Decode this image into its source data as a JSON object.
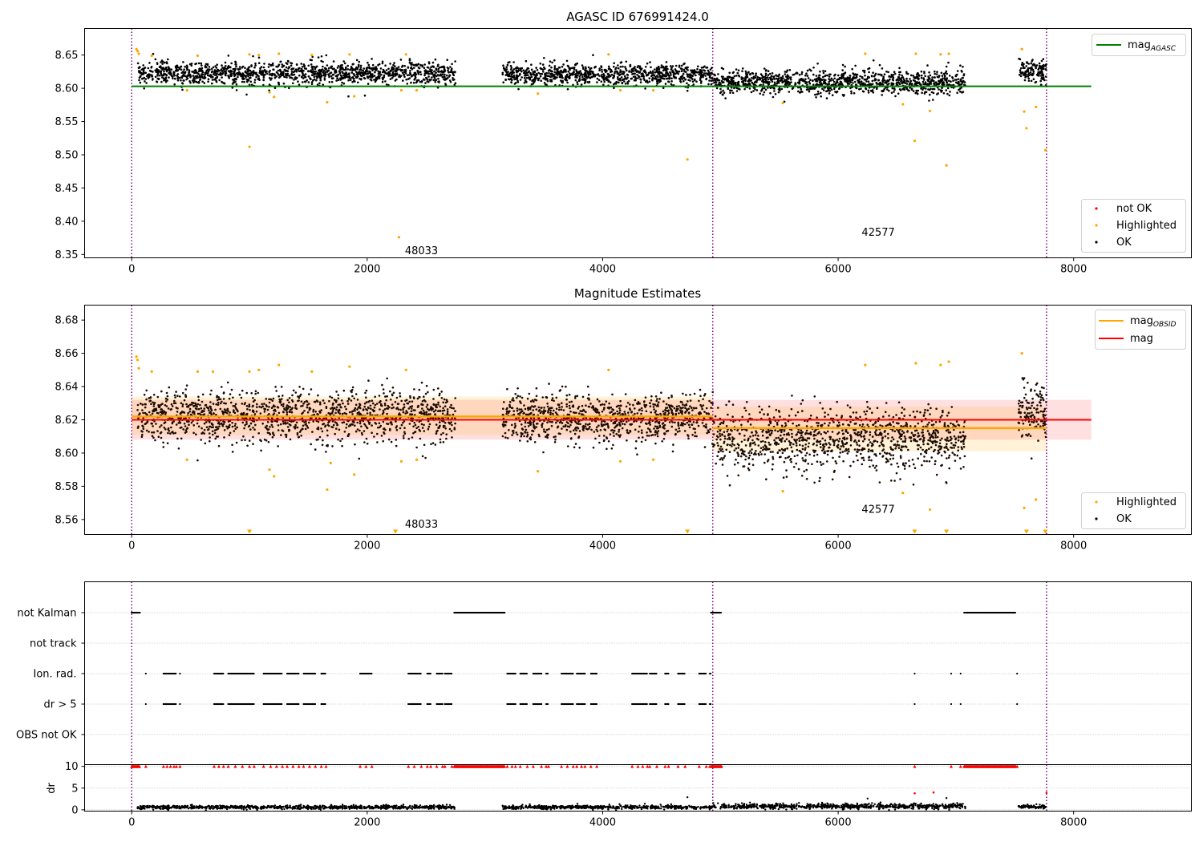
{
  "chart_data": [
    {
      "panel": "top",
      "type": "scatter",
      "title": "AGASC ID 676991424.0",
      "xlim": [
        -400,
        9000
      ],
      "ylim": [
        8.345,
        8.69
      ],
      "xticks": [
        0,
        2000,
        4000,
        6000,
        8000
      ],
      "yticks": [
        8.35,
        8.4,
        8.45,
        8.5,
        8.55,
        8.6,
        8.65
      ],
      "xtick_labels": [
        "0",
        "2000",
        "4000",
        "6000",
        "8000"
      ],
      "ytick_labels": [
        "8.35",
        "8.40",
        "8.45",
        "8.50",
        "8.55",
        "8.60",
        "8.65"
      ],
      "obs_boundaries": [
        0,
        4935,
        7770
      ],
      "obs_labels": [
        {
          "text": "48033",
          "x": 2320,
          "y": 8.355
        },
        {
          "text": "42577",
          "x": 6200,
          "y": 8.383
        }
      ],
      "mag_agasc": {
        "value": 8.603,
        "x": [
          0,
          8150
        ],
        "color": "#008000"
      },
      "ok_segments": [
        {
          "x": [
            50,
            2750
          ],
          "center": 8.623,
          "spread": 0.012
        },
        {
          "x": [
            3150,
            4935
          ],
          "center": 8.621,
          "spread": 0.011
        },
        {
          "x": [
            4935,
            7080
          ],
          "center": 8.609,
          "spread": 0.013
        },
        {
          "x": [
            7530,
            7770
          ],
          "center": 8.626,
          "spread": 0.012
        }
      ],
      "highlighted_points": [
        [
          40,
          8.659
        ],
        [
          50,
          8.656
        ],
        [
          60,
          8.652
        ],
        [
          170,
          8.649
        ],
        [
          470,
          8.597
        ],
        [
          560,
          8.649
        ],
        [
          1000,
          8.512
        ],
        [
          1000,
          8.651
        ],
        [
          1080,
          8.65
        ],
        [
          1170,
          8.594
        ],
        [
          1210,
          8.587
        ],
        [
          1250,
          8.652
        ],
        [
          1530,
          8.65
        ],
        [
          1660,
          8.579
        ],
        [
          1850,
          8.651
        ],
        [
          1890,
          8.588
        ],
        [
          2270,
          8.376
        ],
        [
          2290,
          8.597
        ],
        [
          2330,
          8.651
        ],
        [
          2420,
          8.597
        ],
        [
          3450,
          8.592
        ],
        [
          4050,
          8.651
        ],
        [
          4150,
          8.597
        ],
        [
          4720,
          8.493
        ],
        [
          4430,
          8.597
        ],
        [
          5530,
          8.578
        ],
        [
          6230,
          8.652
        ],
        [
          6550,
          8.576
        ],
        [
          6650,
          8.521
        ],
        [
          6660,
          8.652
        ],
        [
          6780,
          8.566
        ],
        [
          6870,
          8.651
        ],
        [
          6920,
          8.484
        ],
        [
          6940,
          8.652
        ],
        [
          7560,
          8.659
        ],
        [
          7580,
          8.565
        ],
        [
          7600,
          8.54
        ],
        [
          7680,
          8.572
        ],
        [
          7760,
          8.507
        ]
      ],
      "legend_lines": [
        {
          "label": "mag",
          "subscript": "AGASC",
          "color": "#008000"
        }
      ],
      "legend_points": [
        {
          "label": "not OK",
          "color": "#ff0000"
        },
        {
          "label": "Highlighted",
          "color": "#ffa500"
        },
        {
          "label": "OK",
          "color": "#000000"
        }
      ],
      "grid": false
    },
    {
      "panel": "middle",
      "type": "scatter",
      "title": "Magnitude Estimates",
      "xlim": [
        -400,
        9000
      ],
      "ylim": [
        8.551,
        8.689
      ],
      "xticks": [
        0,
        2000,
        4000,
        6000,
        8000
      ],
      "yticks": [
        8.56,
        8.58,
        8.6,
        8.62,
        8.64,
        8.66,
        8.68
      ],
      "xtick_labels": [
        "0",
        "2000",
        "4000",
        "6000",
        "8000"
      ],
      "ytick_labels": [
        "8.56",
        "8.58",
        "8.60",
        "8.62",
        "8.64",
        "8.66",
        "8.68"
      ],
      "obs_boundaries": [
        0,
        4935,
        7770
      ],
      "obs_labels": [
        {
          "text": "48033",
          "x": 2320,
          "y": 8.557
        },
        {
          "text": "42577",
          "x": 6200,
          "y": 8.566
        }
      ],
      "mag": {
        "value": 8.62,
        "band": [
          8.608,
          8.632
        ],
        "x": [
          0,
          8150
        ],
        "color": "#ff0000"
      },
      "mag_obsid": [
        {
          "x": [
            0,
            4935
          ],
          "value": 8.622,
          "band": [
            8.611,
            8.634
          ]
        },
        {
          "x": [
            4935,
            7770
          ],
          "value": 8.615,
          "band": [
            8.601,
            8.628
          ]
        }
      ],
      "ok_segments": [
        {
          "x": [
            50,
            2750
          ],
          "center": 8.622,
          "spread": 0.011
        },
        {
          "x": [
            3150,
            4935
          ],
          "center": 8.621,
          "spread": 0.01
        },
        {
          "x": [
            4935,
            7080
          ],
          "center": 8.609,
          "spread": 0.013
        },
        {
          "x": [
            7530,
            7770
          ],
          "center": 8.624,
          "spread": 0.011
        }
      ],
      "highlighted_points": [
        [
          40,
          8.658
        ],
        [
          50,
          8.656
        ],
        [
          60,
          8.651
        ],
        [
          170,
          8.649
        ],
        [
          470,
          8.596
        ],
        [
          560,
          8.649
        ],
        [
          690,
          8.649
        ],
        [
          1000,
          8.649
        ],
        [
          1080,
          8.65
        ],
        [
          1170,
          8.59
        ],
        [
          1210,
          8.586
        ],
        [
          1250,
          8.653
        ],
        [
          1530,
          8.649
        ],
        [
          1660,
          8.578
        ],
        [
          1690,
          8.594
        ],
        [
          1850,
          8.652
        ],
        [
          1890,
          8.587
        ],
        [
          2290,
          8.595
        ],
        [
          2330,
          8.65
        ],
        [
          2420,
          8.596
        ],
        [
          3450,
          8.589
        ],
        [
          4050,
          8.65
        ],
        [
          4150,
          8.595
        ],
        [
          4430,
          8.596
        ],
        [
          5530,
          8.577
        ],
        [
          6230,
          8.653
        ],
        [
          6550,
          8.576
        ],
        [
          6660,
          8.654
        ],
        [
          6780,
          8.566
        ],
        [
          6870,
          8.653
        ],
        [
          6940,
          8.655
        ],
        [
          7560,
          8.66
        ],
        [
          7580,
          8.567
        ],
        [
          7680,
          8.572
        ]
      ],
      "out_of_range_markers": [
        1000,
        2240,
        4720,
        6650,
        6920,
        7600,
        7760
      ],
      "legend_lines": [
        {
          "label": "mag",
          "subscript": "OBSID",
          "color": "#ffa500"
        },
        {
          "label": "mag",
          "subscript": "",
          "color": "#ff0000"
        }
      ],
      "legend_points": [
        {
          "label": "Highlighted",
          "color": "#ffa500"
        },
        {
          "label": "OK",
          "color": "#000000"
        }
      ],
      "grid": false
    },
    {
      "panel": "flags",
      "type": "scatter",
      "xlim": [
        -400,
        9000
      ],
      "categories": [
        "not Kalman",
        "not track",
        "Ion. rad.",
        "dr > 5",
        "OBS not OK"
      ],
      "obs_boundaries": [
        0,
        4935,
        7770
      ],
      "not_kalman": [
        [
          0,
          70
        ],
        [
          2740,
          3170
        ],
        [
          4920,
          5010
        ],
        [
          7070,
          7510
        ]
      ],
      "ion_rad": [
        [
          120,
          120
        ],
        [
          270,
          380
        ],
        [
          410,
          410
        ],
        [
          700,
          780
        ],
        [
          820,
          1040
        ],
        [
          1120,
          1280
        ],
        [
          1320,
          1420
        ],
        [
          1460,
          1560
        ],
        [
          1610,
          1650
        ],
        [
          1940,
          2040
        ],
        [
          2350,
          2460
        ],
        [
          2510,
          2540
        ],
        [
          2590,
          2640
        ],
        [
          2660,
          2720
        ],
        [
          3190,
          3260
        ],
        [
          3300,
          3360
        ],
        [
          3410,
          3480
        ],
        [
          3520,
          3540
        ],
        [
          3650,
          3750
        ],
        [
          3780,
          3850
        ],
        [
          3900,
          3950
        ],
        [
          4250,
          4380
        ],
        [
          4400,
          4460
        ],
        [
          4530,
          4560
        ],
        [
          4640,
          4700
        ],
        [
          4820,
          4880
        ],
        [
          4910,
          4920
        ],
        [
          6650,
          6650
        ],
        [
          6960,
          6960
        ],
        [
          7040,
          7040
        ],
        [
          7520,
          7520
        ]
      ],
      "dr_gt5": [
        [
          120,
          120
        ],
        [
          270,
          380
        ],
        [
          410,
          410
        ],
        [
          700,
          780
        ],
        [
          820,
          1040
        ],
        [
          1120,
          1280
        ],
        [
          1320,
          1420
        ],
        [
          1460,
          1560
        ],
        [
          1610,
          1650
        ],
        [
          2350,
          2460
        ],
        [
          2510,
          2540
        ],
        [
          2590,
          2640
        ],
        [
          2660,
          2720
        ],
        [
          3190,
          3260
        ],
        [
          3300,
          3360
        ],
        [
          3410,
          3480
        ],
        [
          3520,
          3540
        ],
        [
          3650,
          3750
        ],
        [
          3780,
          3850
        ],
        [
          3900,
          3950
        ],
        [
          4250,
          4380
        ],
        [
          4400,
          4460
        ],
        [
          4530,
          4560
        ],
        [
          4640,
          4700
        ],
        [
          4820,
          4880
        ],
        [
          4910,
          4920
        ],
        [
          6650,
          6650
        ],
        [
          6960,
          6960
        ],
        [
          7040,
          7040
        ],
        [
          7520,
          7520
        ]
      ]
    },
    {
      "panel": "dr",
      "type": "scatter",
      "ylabel": "dr",
      "xlim": [
        -400,
        9000
      ],
      "ylim": [
        -0.3,
        10.4
      ],
      "yticks": [
        0,
        5,
        10
      ],
      "ytick_labels": [
        "0",
        "5",
        "10"
      ],
      "xticks": [
        0,
        2000,
        4000,
        6000,
        8000
      ],
      "xtick_labels": [
        "0",
        "2000",
        "4000",
        "6000",
        "8000"
      ],
      "obs_boundaries": [
        0,
        4935,
        7770
      ],
      "ok_segments": [
        {
          "x": [
            50,
            2750
          ],
          "center": 0.6,
          "spread": 0.3
        },
        {
          "x": [
            3150,
            4935
          ],
          "center": 0.6,
          "spread": 0.3
        },
        {
          "x": [
            4935,
            7080
          ],
          "center": 0.8,
          "spread": 0.4
        },
        {
          "x": [
            7530,
            7770
          ],
          "center": 0.7,
          "spread": 0.3
        }
      ],
      "notok_capped_ranges": [
        [
          0,
          70
        ],
        [
          2740,
          3170
        ],
        [
          4920,
          5010
        ],
        [
          7070,
          7510
        ]
      ],
      "notok_capped_points": [
        120,
        270,
        300,
        330,
        360,
        380,
        410,
        700,
        740,
        780,
        820,
        880,
        940,
        1000,
        1040,
        1120,
        1180,
        1230,
        1280,
        1320,
        1370,
        1420,
        1460,
        1510,
        1560,
        1610,
        1650,
        1940,
        1990,
        2040,
        2350,
        2400,
        2460,
        2510,
        2540,
        2590,
        2640,
        2660,
        2720,
        3190,
        3230,
        3260,
        3300,
        3360,
        3410,
        3480,
        3520,
        3540,
        3650,
        3700,
        3750,
        3780,
        3820,
        3850,
        3900,
        3950,
        4250,
        4300,
        4340,
        4380,
        4400,
        4460,
        4530,
        4560,
        4640,
        4700,
        4820,
        4880,
        4910,
        6650,
        6960,
        7040,
        7520
      ],
      "notok_points": [
        [
          6650,
          3.8
        ],
        [
          6810,
          4.0
        ],
        [
          7770,
          3.9
        ]
      ],
      "extra_ok_points": [
        [
          4720,
          2.9
        ],
        [
          6250,
          2.6
        ],
        [
          6920,
          2.7
        ]
      ],
      "grid": true
    }
  ]
}
